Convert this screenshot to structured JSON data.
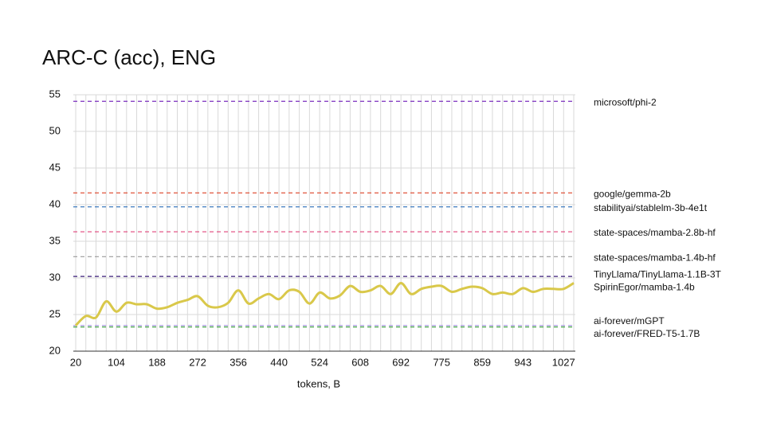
{
  "chart_data": {
    "type": "line",
    "title": "ARC-C (acc), ENG",
    "x_label": "tokens, B",
    "categories": [
      "20",
      null,
      null,
      null,
      "104",
      null,
      null,
      null,
      "188",
      null,
      null,
      null,
      "272",
      null,
      null,
      null,
      "356",
      null,
      null,
      null,
      "440",
      null,
      null,
      null,
      "524",
      null,
      null,
      null,
      "608",
      null,
      null,
      null,
      "692",
      null,
      null,
      null,
      "775",
      null,
      null,
      null,
      "859",
      null,
      null,
      null,
      "943",
      null,
      null,
      null,
      "1027",
      null
    ],
    "ylim": [
      20,
      55
    ],
    "yticks": [
      20,
      25,
      30,
      35,
      40,
      45,
      50,
      55
    ],
    "grid": true,
    "series": [
      {
        "name": "SpirinEgor/mamba-1.4b",
        "color": "#d9c84a",
        "values": [
          23.5,
          24.8,
          24.6,
          26.8,
          25.4,
          26.6,
          26.4,
          26.4,
          25.8,
          26.0,
          26.6,
          27.0,
          27.5,
          26.2,
          26.0,
          26.6,
          28.3,
          26.5,
          27.2,
          27.8,
          27.1,
          28.3,
          28.1,
          26.5,
          28.0,
          27.2,
          27.6,
          28.9,
          28.1,
          28.3,
          28.9,
          27.8,
          29.3,
          27.8,
          28.5,
          28.8,
          28.9,
          28.1,
          28.5,
          28.8,
          28.6,
          27.8,
          28.0,
          27.8,
          28.6,
          28.1,
          28.5,
          28.5,
          28.5,
          29.3
        ]
      }
    ],
    "reference_lines": [
      {
        "name": "microsoft/phi-2",
        "color": "#7b2fbe",
        "value": 54.1
      },
      {
        "name": "google/gemma-2b",
        "color": "#e0533a",
        "value": 41.6
      },
      {
        "name": "stabilityai/stablelm-3b-4e1t",
        "color": "#3d7abf",
        "value": 39.7
      },
      {
        "name": "state-spaces/mamba-2.8b-hf",
        "color": "#e0457b",
        "value": 36.3
      },
      {
        "name": "state-spaces/mamba-1.4b-hf",
        "color": "#999999",
        "value": 32.9
      },
      {
        "name": "TinyLlama/TinyLlama-1.1B-3T",
        "color": "#3b1f7a",
        "value": 30.2
      },
      {
        "name": "ai-forever/mGPT",
        "color": "#9f8fdc",
        "value": 23.5
      },
      {
        "name": "ai-forever/FRED-T5-1.7B",
        "color": "#4caa4a",
        "value": 23.3
      }
    ]
  }
}
